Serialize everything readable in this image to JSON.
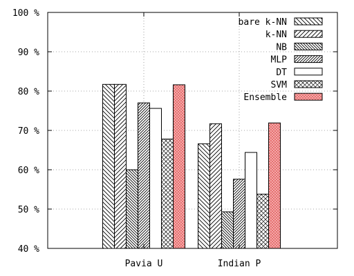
{
  "chart_data": {
    "type": "bar",
    "categories": [
      "Pavia U",
      "Indian P"
    ],
    "series": [
      {
        "name": "bare k-NN",
        "values": [
          81.7,
          66.6
        ],
        "pattern": "diag-back",
        "color": "#ffffff"
      },
      {
        "name": "k-NN",
        "values": [
          81.7,
          71.7
        ],
        "pattern": "diag-fwd",
        "color": "#ffffff"
      },
      {
        "name": "NB",
        "values": [
          60.0,
          49.3
        ],
        "pattern": "diag-back-dense",
        "color": "#ffffff"
      },
      {
        "name": "MLP",
        "values": [
          77.0,
          57.6
        ],
        "pattern": "diag-fwd-dense",
        "color": "#ffffff"
      },
      {
        "name": "DT",
        "values": [
          75.6,
          64.4
        ],
        "pattern": "none",
        "color": "#ffffff"
      },
      {
        "name": "SVM",
        "values": [
          67.8,
          53.8
        ],
        "pattern": "crosshatch",
        "color": "#ffffff"
      },
      {
        "name": "Ensemble",
        "values": [
          81.6,
          71.9
        ],
        "pattern": "crosshatch-red",
        "color": "#f4a6a6"
      }
    ],
    "ylim": [
      40,
      100
    ],
    "yticks": [
      "40 %",
      "50 %",
      "60 %",
      "70 %",
      "80 %",
      "90 %",
      "100 %"
    ],
    "ytick_values": [
      40,
      50,
      60,
      70,
      80,
      90,
      100
    ],
    "grid": true,
    "legend_position": "top-right"
  }
}
